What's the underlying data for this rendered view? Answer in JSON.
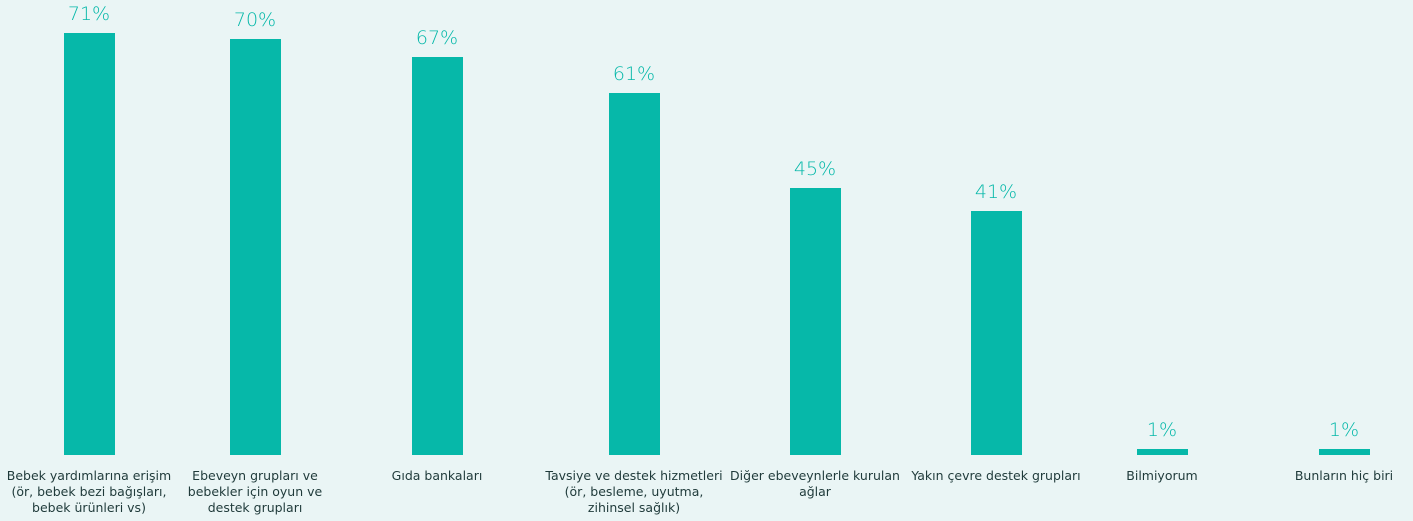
{
  "chart_data": {
    "type": "bar",
    "categories": [
      "Bebek yardımlarına erişim (ör, bebek bezi bağışları, bebek ürünleri vs)",
      "Ebeveyn grupları ve bebekler için oyun ve destek grupları",
      "Gıda bankaları",
      "Tavsiye ve destek hizmetleri (ör, besleme, uyutma, zihinsel sağlık)",
      "Diğer ebeveynlerle kurulan ağlar",
      "Yakın çevre destek grupları",
      "Bilmiyorum",
      "Bunların hiç biri"
    ],
    "values": [
      71,
      70,
      67,
      61,
      45,
      41,
      1,
      1
    ],
    "value_labels": [
      "71%",
      "70%",
      "67%",
      "61%",
      "45%",
      "41%",
      "1%",
      "1%"
    ],
    "color": "#06b8a9"
  }
}
